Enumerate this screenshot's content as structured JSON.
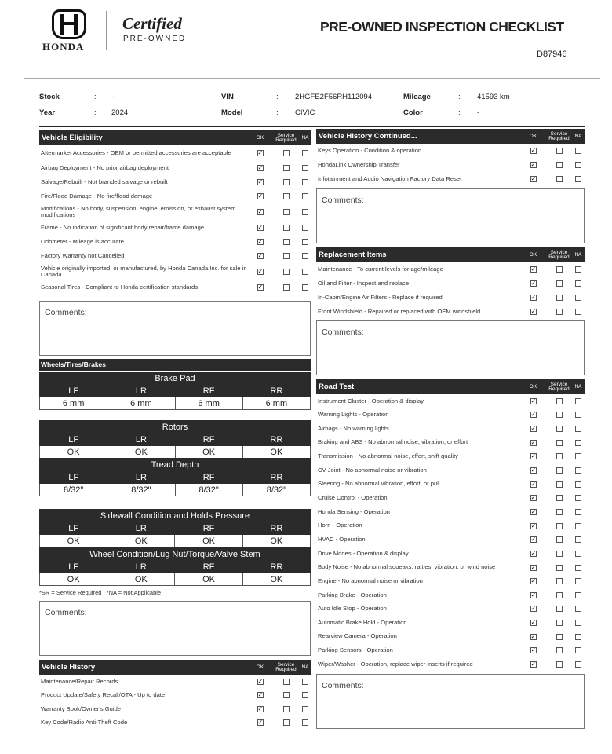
{
  "header": {
    "brand": "HONDA",
    "certified": "Certified",
    "pre_owned": "PRE-OWNED",
    "title": "PRE-OWNED INSPECTION CHECKLIST",
    "code": "D87946"
  },
  "info": {
    "stock_label": "Stock",
    "stock": "-",
    "year_label": "Year",
    "year": "2024",
    "vin_label": "VIN",
    "vin": "2HGFE2F56RH112094",
    "model_label": "Model",
    "model": "CIVIC",
    "mileage_label": "Mileage",
    "mileage": "41593 km",
    "color_label": "Color",
    "color": "-"
  },
  "cols": {
    "ok": "OK",
    "service": "Service Required",
    "na": "NA"
  },
  "comments_label": "Comments:",
  "sections": {
    "eligibility": {
      "title": "Vehicle Eligibility",
      "items": [
        "Aftermarket Accessories - OEM or permitted accessories are acceptable",
        "Airbag Deployment - No prior airbag deployment",
        "Salvage/Rebuilt - Not branded salvage or rebuilt",
        "Fire/Flood Damage - No fire/flood damage",
        "Modifications - No body, suspension, engine, emission, or exhaust system modifications",
        "Frame - No indication of significant body repair/frame damage",
        "Odometer - Mileage is accurate",
        "Factory Warranty not Cancelled",
        "Vehicle originally imported, or manufactured, by Honda Canada Inc. for sale in Canada",
        "Seasonal Tires - Compliant to Honda certification standards"
      ]
    },
    "history": {
      "title": "Vehicle History",
      "items": [
        "Maintenance/Repair Records",
        "Product Update/Safety Recall/OTA - Up to date",
        "Warranty Book/Owner's Guide",
        "Key Code/Radio Anti-Theft Code"
      ]
    },
    "history_cont": {
      "title": "Vehicle History Continued...",
      "items": [
        "Keys Operation - Condition & operation",
        "HondaLink Ownership Transfer",
        "Infotainment and Audio Navigation Factory Data Reset"
      ]
    },
    "replacement": {
      "title": "Replacement Items",
      "items": [
        "Maintenance - To current levels for age/mileage",
        "Oil and Filter - Inspect and replace",
        "In-Cabin/Engine Air Filters - Replace if required",
        "Front Windshield - Repaired or replaced with OEM windshield"
      ]
    },
    "road": {
      "title": "Road Test",
      "items": [
        "Instrument Cluster - Operation & display",
        "Warning Lights - Operation",
        "Airbags - No warning lights",
        "Braking and ABS - No abnormal noise, vibration, or effort",
        "Transmission - No abnormal noise, effort, shift quality",
        "CV Joint - No abnormal noise or vibration",
        "Steering - No abnormal vibration, effort, or pull",
        "Cruise Control - Operation",
        "Honda Sensing - Operation",
        "Horn - Operation",
        "HVAC - Operation",
        "Drive Modes - Operation & display",
        "Body Noise - No abnormal squeaks, rattles, vibration, or wind noise",
        "Engine - No abnormal noise or vibration",
        "Parking Brake - Operation",
        "Auto Idle Stop - Operation",
        "Automatic Brake Hold - Operation",
        "Rearview Camera - Operation",
        "Parking Sensors - Operation",
        "Wiper/Washer - Operation, replace wiper inserts if required"
      ]
    }
  },
  "check_state": "ok",
  "wheels": {
    "title": "Wheels/Tires/Brakes",
    "positions": [
      "LF",
      "LR",
      "RF",
      "RR"
    ],
    "tables": [
      {
        "title": "Brake Pad",
        "values": [
          "6 mm",
          "6 mm",
          "6 mm",
          "6 mm"
        ]
      },
      {
        "title": "Rotors",
        "values": [
          "OK",
          "OK",
          "OK",
          "OK"
        ]
      },
      {
        "title": "Tread Depth",
        "values": [
          "8/32\"",
          "8/32\"",
          "8/32\"",
          "8/32\""
        ]
      },
      {
        "title": "Sidewall Condition and Holds Pressure",
        "values": [
          "OK",
          "OK",
          "OK",
          "OK"
        ]
      },
      {
        "title": "Wheel Condition/Lug Nut/Torque/Valve Stem",
        "values": [
          "OK",
          "OK",
          "OK",
          "OK"
        ]
      }
    ],
    "footnote": "*SR = Service Required   *NA = Not Applicable"
  }
}
